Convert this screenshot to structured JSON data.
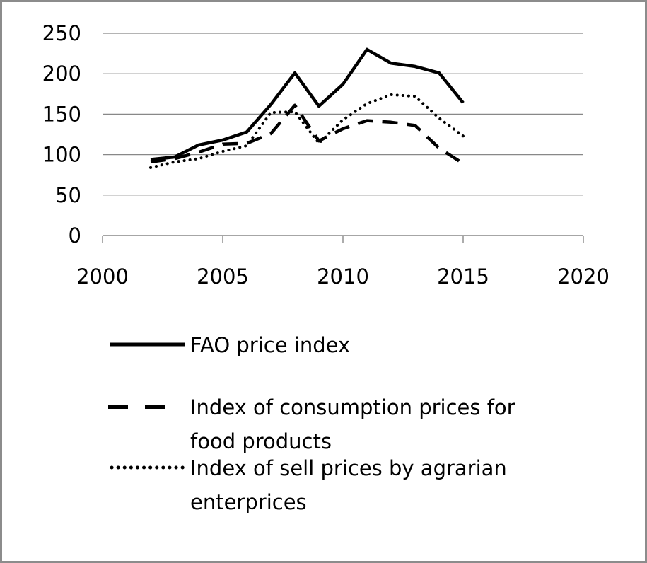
{
  "chart_data": {
    "type": "line",
    "title": "",
    "xlabel": "",
    "ylabel": "",
    "xlim": [
      2000,
      2020
    ],
    "ylim": [
      0,
      250
    ],
    "x_ticks": [
      2000,
      2005,
      2010,
      2015,
      2020
    ],
    "y_ticks": [
      0,
      50,
      100,
      150,
      200,
      250
    ],
    "x_tick_labels": [
      "2000",
      "2005",
      "2010",
      "2015",
      "2020"
    ],
    "y_tick_labels": [
      "0",
      "50",
      "100",
      "150",
      "200",
      "250"
    ],
    "grid": "horizontal",
    "legend_position": "bottom",
    "series": [
      {
        "name": "FAO price index",
        "style": "solid",
        "legend_lines": [
          "FAO price index"
        ],
        "x": [
          2002,
          2003,
          2004,
          2005,
          2006,
          2007,
          2008,
          2009,
          2010,
          2011,
          2012,
          2013,
          2014,
          2015
        ],
        "values": [
          94,
          97,
          112,
          118,
          128,
          162,
          201,
          160,
          187,
          230,
          213,
          209,
          201,
          164
        ]
      },
      {
        "name": "Index of consumption prices for food products",
        "style": "dashed",
        "legend_lines": [
          "Index of consumption prices for",
          "food products"
        ],
        "x": [
          2002,
          2003,
          2004,
          2005,
          2006,
          2007,
          2008,
          2009,
          2010,
          2011,
          2012,
          2013,
          2014,
          2015
        ],
        "values": [
          91,
          95,
          103,
          113,
          114,
          126,
          161,
          117,
          132,
          142,
          140,
          136,
          108,
          89
        ]
      },
      {
        "name": "Index of sell prices by agrarian enterprices",
        "style": "dotted",
        "legend_lines": [
          "Index of sell prices by agrarian",
          "enterprices"
        ],
        "x": [
          2002,
          2003,
          2004,
          2005,
          2006,
          2007,
          2008,
          2009,
          2010,
          2011,
          2012,
          2013,
          2014,
          2015
        ],
        "values": [
          84,
          91,
          95,
          104,
          111,
          152,
          153,
          114,
          143,
          163,
          174,
          172,
          145,
          123
        ]
      }
    ]
  },
  "colors": {
    "line": "#000000",
    "grid": "#888888",
    "frame": "#8c8c8c"
  }
}
